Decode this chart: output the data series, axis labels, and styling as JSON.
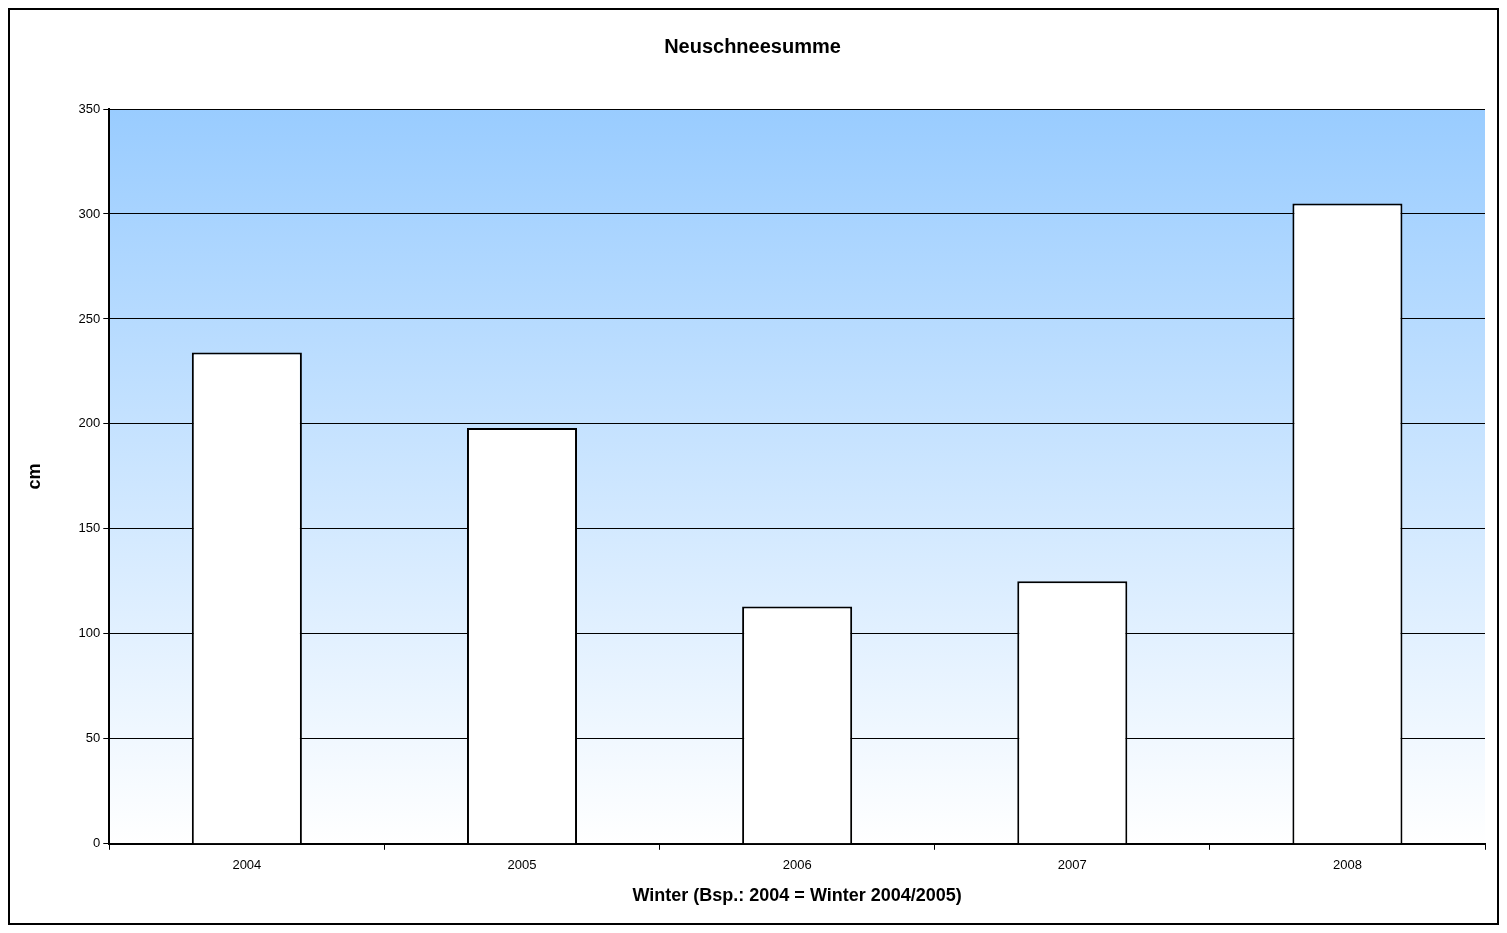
{
  "chart_data": {
    "type": "bar",
    "title": "Neuschneesumme",
    "xlabel": "Winter (Bsp.: 2004 = Winter 2004/2005)",
    "ylabel": "cm",
    "categories": [
      "2004",
      "2005",
      "2006",
      "2007",
      "2008"
    ],
    "series": [
      {
        "color": "#ffffff",
        "values": [
          234,
          198,
          113,
          125,
          305
        ]
      }
    ],
    "ylim": [
      0,
      350
    ],
    "yticks": [
      0,
      50,
      100,
      150,
      200,
      250,
      300,
      350
    ],
    "grid": "y",
    "legend": false
  }
}
